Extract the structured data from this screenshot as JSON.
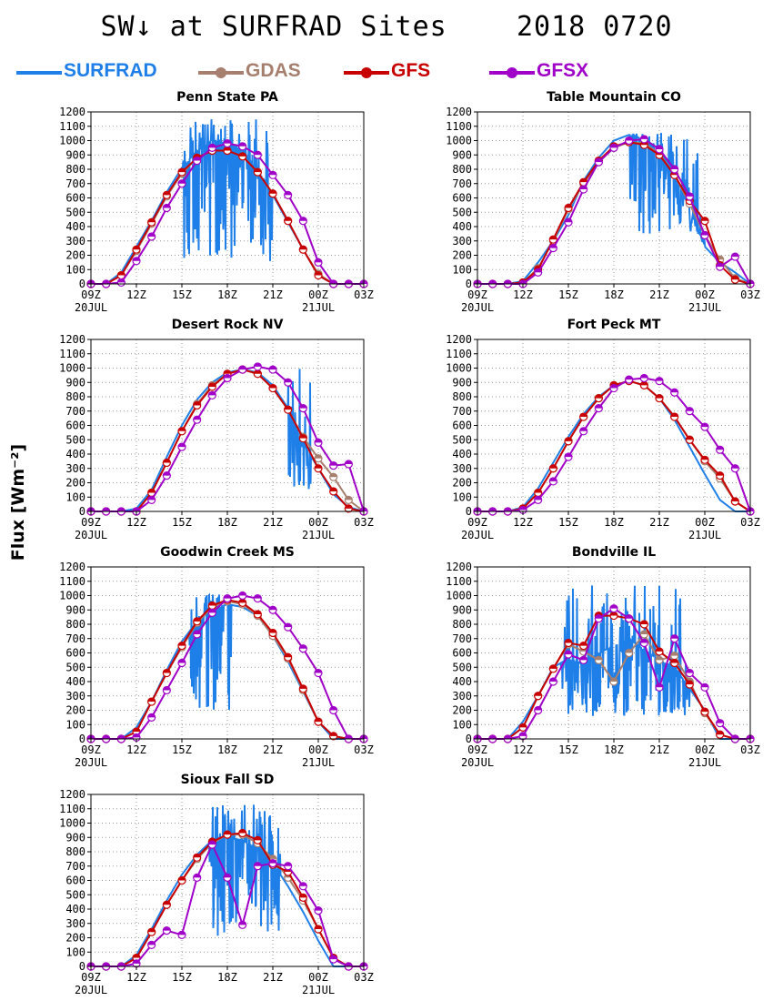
{
  "title": "SW↓ at SURFRAD Sites    2018 0720",
  "ylabel": "Flux [Wm⁻²]",
  "legend": [
    {
      "name": "SURFRAD",
      "color": "#1f7fe8",
      "marker": false
    },
    {
      "name": "GDAS",
      "color": "#a67f6e",
      "marker": true
    },
    {
      "name": "GFS",
      "color": "#c80000",
      "marker": true
    },
    {
      "name": "GFSX",
      "color": "#a000c8",
      "marker": true
    }
  ],
  "chart_data": [
    {
      "type": "line",
      "title": "Penn State PA",
      "x_ticks": [
        "09Z",
        "12Z",
        "15Z",
        "18Z",
        "21Z",
        "00Z",
        "03Z"
      ],
      "x_date_labels": {
        "09Z": "20JUL",
        "00Z": "21JUL"
      },
      "ylim": [
        0,
        1200
      ],
      "y_ticks": [
        0,
        100,
        200,
        300,
        400,
        500,
        600,
        700,
        800,
        900,
        1000,
        1100,
        1200
      ],
      "x_hours": [
        9,
        10,
        11,
        12,
        13,
        14,
        15,
        16,
        17,
        18,
        19,
        20,
        21,
        22,
        23,
        24,
        25,
        26,
        27
      ],
      "series": [
        {
          "name": "GDAS",
          "values": [
            0,
            0,
            60,
            230,
            420,
            610,
            770,
            880,
            930,
            930,
            890,
            780,
            630,
            440,
            240,
            70,
            0,
            0,
            0
          ]
        },
        {
          "name": "GFS",
          "values": [
            0,
            0,
            60,
            240,
            430,
            620,
            780,
            880,
            930,
            930,
            890,
            780,
            630,
            440,
            240,
            60,
            0,
            0,
            0
          ]
        },
        {
          "name": "GFSX",
          "values": [
            0,
            0,
            10,
            160,
            330,
            530,
            700,
            860,
            950,
            980,
            960,
            900,
            760,
            620,
            440,
            150,
            0,
            0,
            0
          ]
        }
      ],
      "surfrad": {
        "base": [
          0,
          0,
          80,
          260,
          440,
          640,
          810,
          930,
          1000,
          990,
          930,
          800,
          620,
          430,
          240,
          60,
          0,
          0,
          0
        ],
        "noisy": [
          15,
          21
        ],
        "min_dip": 150,
        "max_spike": 1150
      }
    },
    {
      "type": "line",
      "title": "Table Mountain CO",
      "x_ticks": [
        "09Z",
        "12Z",
        "15Z",
        "18Z",
        "21Z",
        "00Z",
        "03Z"
      ],
      "x_date_labels": {
        "09Z": "20JUL",
        "00Z": "21JUL"
      },
      "ylim": [
        0,
        1200
      ],
      "y_ticks": [
        0,
        100,
        200,
        300,
        400,
        500,
        600,
        700,
        800,
        900,
        1000,
        1100,
        1200
      ],
      "x_hours": [
        9,
        10,
        11,
        12,
        13,
        14,
        15,
        16,
        17,
        18,
        19,
        20,
        21,
        22,
        23,
        24,
        25,
        26,
        27
      ],
      "series": [
        {
          "name": "GDAS",
          "values": [
            0,
            0,
            0,
            10,
            110,
            300,
            520,
            700,
            850,
            950,
            990,
            980,
            910,
            760,
            560,
            340,
            170,
            40,
            0
          ]
        },
        {
          "name": "GFS",
          "values": [
            0,
            0,
            0,
            10,
            100,
            310,
            530,
            710,
            860,
            960,
            990,
            970,
            900,
            760,
            580,
            440,
            130,
            30,
            0
          ]
        },
        {
          "name": "GFSX",
          "values": [
            0,
            0,
            0,
            0,
            80,
            250,
            430,
            660,
            850,
            950,
            1000,
            1010,
            940,
            800,
            610,
            340,
            120,
            190,
            0
          ]
        }
      ],
      "surfrad": {
        "base": [
          0,
          0,
          0,
          20,
          150,
          300,
          480,
          720,
          880,
          1000,
          1040,
          1010,
          940,
          780,
          520,
          260,
          150,
          80,
          0
        ],
        "noisy": [
          19,
          24
        ],
        "min_dip": 350,
        "max_spike": 1060
      }
    },
    {
      "type": "line",
      "title": "Desert Rock NV",
      "x_ticks": [
        "09Z",
        "12Z",
        "15Z",
        "18Z",
        "21Z",
        "00Z",
        "03Z"
      ],
      "x_date_labels": {
        "09Z": "20JUL",
        "00Z": "21JUL"
      },
      "ylim": [
        0,
        1200
      ],
      "y_ticks": [
        0,
        100,
        200,
        300,
        400,
        500,
        600,
        700,
        800,
        900,
        1000,
        1100,
        1200
      ],
      "x_hours": [
        9,
        10,
        11,
        12,
        13,
        14,
        15,
        16,
        17,
        18,
        19,
        20,
        21,
        22,
        23,
        24,
        25,
        26,
        27
      ],
      "series": [
        {
          "name": "GDAS",
          "values": [
            0,
            0,
            0,
            0,
            130,
            340,
            560,
            750,
            880,
            960,
            990,
            960,
            860,
            710,
            520,
            370,
            240,
            80,
            0
          ]
        },
        {
          "name": "GFS",
          "values": [
            0,
            0,
            0,
            0,
            130,
            340,
            560,
            740,
            870,
            960,
            990,
            960,
            860,
            710,
            510,
            300,
            140,
            20,
            0
          ]
        },
        {
          "name": "GFSX",
          "values": [
            0,
            0,
            0,
            0,
            80,
            250,
            450,
            640,
            810,
            930,
            990,
            1010,
            990,
            900,
            720,
            480,
            320,
            330,
            0
          ]
        }
      ],
      "surfrad": {
        "base": [
          0,
          0,
          0,
          20,
          150,
          380,
          600,
          780,
          900,
          970,
          990,
          970,
          880,
          720,
          480,
          300,
          120,
          30,
          0
        ],
        "noisy": [
          22,
          23.5
        ],
        "min_dip": 120,
        "max_spike": 1000
      }
    },
    {
      "type": "line",
      "title": "Fort Peck MT",
      "x_ticks": [
        "09Z",
        "12Z",
        "15Z",
        "18Z",
        "21Z",
        "00Z",
        "03Z"
      ],
      "x_date_labels": {
        "09Z": "20JUL",
        "00Z": "21JUL"
      },
      "ylim": [
        0,
        1200
      ],
      "y_ticks": [
        0,
        100,
        200,
        300,
        400,
        500,
        600,
        700,
        800,
        900,
        1000,
        1100,
        1200
      ],
      "x_hours": [
        9,
        10,
        11,
        12,
        13,
        14,
        15,
        16,
        17,
        18,
        19,
        20,
        21,
        22,
        23,
        24,
        25,
        26,
        27
      ],
      "series": [
        {
          "name": "GDAS",
          "values": [
            0,
            0,
            0,
            20,
            130,
            300,
            490,
            660,
            790,
            880,
            910,
            880,
            790,
            660,
            500,
            350,
            230,
            70,
            0
          ]
        },
        {
          "name": "GFS",
          "values": [
            0,
            0,
            0,
            20,
            130,
            300,
            490,
            660,
            790,
            880,
            910,
            880,
            790,
            660,
            500,
            360,
            250,
            70,
            0
          ]
        },
        {
          "name": "GFSX",
          "values": [
            0,
            0,
            0,
            10,
            80,
            210,
            380,
            560,
            720,
            860,
            920,
            930,
            910,
            830,
            700,
            590,
            430,
            300,
            0
          ]
        }
      ],
      "surfrad": {
        "base": [
          0,
          0,
          0,
          30,
          160,
          340,
          520,
          680,
          800,
          880,
          910,
          880,
          790,
          640,
          450,
          260,
          80,
          0,
          0
        ],
        "noisy": [],
        "min_dip": 0,
        "max_spike": 0
      }
    },
    {
      "type": "line",
      "title": "Goodwin Creek MS",
      "x_ticks": [
        "09Z",
        "12Z",
        "15Z",
        "18Z",
        "21Z",
        "00Z",
        "03Z"
      ],
      "x_date_labels": {
        "09Z": "20JUL",
        "00Z": "21JUL"
      },
      "ylim": [
        0,
        1200
      ],
      "y_ticks": [
        0,
        100,
        200,
        300,
        400,
        500,
        600,
        700,
        800,
        900,
        1000,
        1100,
        1200
      ],
      "x_hours": [
        9,
        10,
        11,
        12,
        13,
        14,
        15,
        16,
        17,
        18,
        19,
        20,
        21,
        22,
        23,
        24,
        25,
        26,
        27
      ],
      "series": [
        {
          "name": "GDAS",
          "values": [
            0,
            0,
            0,
            50,
            260,
            460,
            640,
            810,
            920,
            960,
            940,
            860,
            720,
            560,
            340,
            120,
            20,
            0,
            0
          ]
        },
        {
          "name": "GFS",
          "values": [
            0,
            0,
            0,
            50,
            260,
            460,
            650,
            820,
            930,
            970,
            950,
            870,
            740,
            570,
            350,
            120,
            20,
            0,
            0
          ]
        },
        {
          "name": "GFSX",
          "values": [
            0,
            0,
            0,
            10,
            150,
            340,
            530,
            730,
            880,
            980,
            1000,
            980,
            900,
            780,
            630,
            460,
            200,
            0,
            0
          ]
        }
      ],
      "surfrad": {
        "base": [
          0,
          0,
          0,
          80,
          260,
          480,
          680,
          820,
          900,
          940,
          920,
          860,
          720,
          540,
          330,
          120,
          0,
          0,
          0
        ],
        "noisy": [
          15.5,
          18.3
        ],
        "min_dip": 200,
        "max_spike": 1010
      }
    },
    {
      "type": "line",
      "title": "Bondville IL",
      "x_ticks": [
        "09Z",
        "12Z",
        "15Z",
        "18Z",
        "21Z",
        "00Z",
        "03Z"
      ],
      "x_date_labels": {
        "09Z": "20JUL",
        "00Z": "21JUL"
      },
      "ylim": [
        0,
        1200
      ],
      "y_ticks": [
        0,
        100,
        200,
        300,
        400,
        500,
        600,
        700,
        800,
        900,
        1000,
        1100,
        1200
      ],
      "x_hours": [
        9,
        10,
        11,
        12,
        13,
        14,
        15,
        16,
        17,
        18,
        19,
        20,
        21,
        22,
        23,
        24,
        25,
        26,
        27
      ],
      "series": [
        {
          "name": "GDAS",
          "values": [
            0,
            0,
            0,
            80,
            300,
            490,
            660,
            610,
            550,
            400,
            600,
            730,
            550,
            580,
            400,
            180,
            30,
            0,
            0
          ]
        },
        {
          "name": "GFS",
          "values": [
            0,
            0,
            0,
            80,
            300,
            490,
            670,
            650,
            860,
            860,
            840,
            800,
            610,
            530,
            380,
            190,
            30,
            0,
            0
          ]
        },
        {
          "name": "GFSX",
          "values": [
            0,
            0,
            0,
            20,
            200,
            400,
            590,
            550,
            840,
            910,
            840,
            670,
            360,
            700,
            460,
            360,
            110,
            0,
            0
          ]
        }
      ],
      "surfrad": {
        "base": [
          0,
          0,
          0,
          120,
          300,
          500,
          560,
          520,
          600,
          650,
          700,
          620,
          550,
          500,
          350,
          200,
          0,
          0,
          0
        ],
        "noisy": [
          14.5,
          23
        ],
        "min_dip": 150,
        "max_spike": 1130
      }
    },
    {
      "type": "line",
      "title": "Sioux Fall SD",
      "x_ticks": [
        "09Z",
        "12Z",
        "15Z",
        "18Z",
        "21Z",
        "00Z",
        "03Z"
      ],
      "x_date_labels": {
        "09Z": "20JUL",
        "00Z": "21JUL"
      },
      "ylim": [
        0,
        1200
      ],
      "y_ticks": [
        0,
        100,
        200,
        300,
        400,
        500,
        600,
        700,
        800,
        900,
        1000,
        1100,
        1200
      ],
      "x_hours": [
        9,
        10,
        11,
        12,
        13,
        14,
        15,
        16,
        17,
        18,
        19,
        20,
        21,
        22,
        23,
        24,
        25,
        26,
        27
      ],
      "series": [
        {
          "name": "GDAS",
          "values": [
            0,
            0,
            0,
            60,
            240,
            430,
            600,
            750,
            860,
            920,
            920,
            860,
            750,
            620,
            460,
            260,
            60,
            0,
            0
          ]
        },
        {
          "name": "GFS",
          "values": [
            0,
            0,
            0,
            60,
            240,
            430,
            600,
            760,
            870,
            920,
            930,
            880,
            710,
            660,
            480,
            260,
            60,
            0,
            0
          ]
        },
        {
          "name": "GFSX",
          "values": [
            0,
            0,
            0,
            20,
            150,
            250,
            220,
            620,
            850,
            620,
            290,
            700,
            720,
            700,
            560,
            390,
            50,
            0,
            0
          ]
        }
      ],
      "surfrad": {
        "base": [
          0,
          0,
          0,
          80,
          260,
          460,
          640,
          780,
          880,
          900,
          880,
          820,
          720,
          560,
          380,
          180,
          0,
          0,
          0
        ],
        "noisy": [
          16.8,
          21.5
        ],
        "min_dip": 200,
        "max_spike": 1150
      }
    }
  ]
}
